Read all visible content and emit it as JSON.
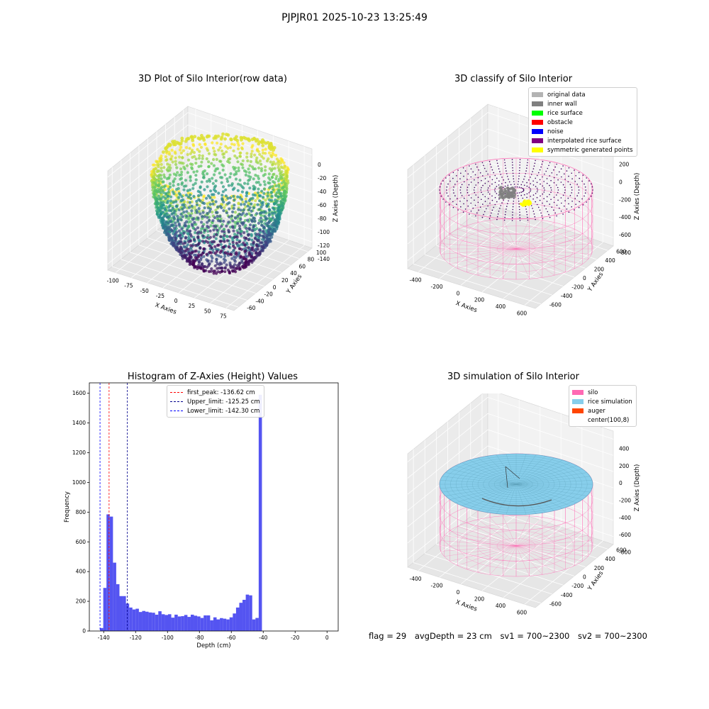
{
  "figure": {
    "suptitle": "PJPJR01 2025-10-23 13:25:49"
  },
  "footer": {
    "flag": "flag = 29",
    "avg_depth": "avgDepth = 23 cm",
    "sv1": "sv1 = 700~2300",
    "sv2": "sv2 = 700~2300"
  },
  "chart_data": [
    {
      "type": "scatter",
      "title": "3D Plot of Silo Interior(row data)",
      "xlabel": "X Axies",
      "ylabel": "Y Axies",
      "zlabel": "Z Axies (Depth)",
      "xticks": [
        "-100",
        "-75",
        "-50",
        "-25",
        "0",
        "25",
        "50",
        "75"
      ],
      "yticks": [
        "-60",
        "-40",
        "-20",
        "0",
        "20",
        "40",
        "60",
        "80",
        "100"
      ],
      "zticks": [
        "0",
        "-20",
        "-40",
        "-60",
        "-80",
        "-100",
        "-120",
        "-140"
      ],
      "xlim": [
        -100,
        90
      ],
      "ylim": [
        -60,
        110
      ],
      "zlim": [
        -150,
        5
      ],
      "colormap": "viridis",
      "grid": true
    },
    {
      "type": "scatter",
      "title": "3D classify of Silo Interior",
      "xlabel": "X Axies",
      "ylabel": "Y Axies",
      "zlabel": "Z Axies (Depth)",
      "xticks": [
        "-400",
        "-200",
        "0",
        "200",
        "400",
        "600"
      ],
      "yticks": [
        "-600",
        "-400",
        "-200",
        "0",
        "200",
        "400",
        "600"
      ],
      "zticks": [
        "200",
        "0",
        "-200",
        "-400",
        "-600",
        "-800"
      ],
      "legend": [
        {
          "label": "original data",
          "color": "#b3b3b3"
        },
        {
          "label": "inner wall",
          "color": "#808080"
        },
        {
          "label": "rice surface",
          "color": "#00ff00"
        },
        {
          "label": "obstacle",
          "color": "#ff0000"
        },
        {
          "label": "noise",
          "color": "#0000ff"
        },
        {
          "label": "interpolated rice surface",
          "color": "#800080"
        },
        {
          "label": "symmetric generated points",
          "color": "#ffff00"
        }
      ],
      "legend_position": "top-right",
      "wireframe_color": "#ff69b4"
    },
    {
      "type": "bar",
      "title": "Histogram of Z-Axies (Height) Values",
      "xlabel": "Depth (cm)",
      "ylabel": "Frequency",
      "xlim": [
        -149,
        7
      ],
      "ylim": [
        0,
        1670
      ],
      "xticks": [
        -140,
        -120,
        -100,
        -80,
        -60,
        -40,
        -20,
        0
      ],
      "yticks": [
        0,
        200,
        400,
        600,
        800,
        1000,
        1200,
        1400,
        1600
      ],
      "bin_width": 2.03,
      "bin_start": -142.3,
      "values": [
        20,
        290,
        785,
        770,
        460,
        315,
        235,
        235,
        185,
        158,
        145,
        150,
        128,
        135,
        130,
        125,
        123,
        110,
        133,
        113,
        108,
        113,
        90,
        110,
        98,
        100,
        108,
        95,
        110,
        103,
        98,
        88,
        105,
        105,
        72,
        92,
        78,
        87,
        83,
        78,
        92,
        118,
        158,
        190,
        210,
        245,
        240,
        78,
        88,
        1590
      ],
      "bar_color": "#4b4bf0",
      "lines": [
        {
          "label": "first_peak: -136.62 cm",
          "x": -136.62,
          "color": "#ff0000"
        },
        {
          "label": "Upper_limit: -125.25 cm",
          "x": -125.25,
          "color": "#00008b"
        },
        {
          "label": "Lower_limit: -142.30 cm",
          "x": -142.3,
          "color": "#0000ff"
        }
      ],
      "legend_position": "top-center"
    },
    {
      "type": "scatter",
      "title": "3D simulation of Silo Interior",
      "xlabel": "X Axies",
      "ylabel": "Y Axies",
      "zlabel": "Z Axies (Depth)",
      "xticks": [
        "-400",
        "-200",
        "0",
        "200",
        "400",
        "600"
      ],
      "yticks": [
        "-600",
        "-400",
        "-200",
        "0",
        "200",
        "400",
        "600"
      ],
      "zticks": [
        "400",
        "200",
        "0",
        "-200",
        "-400",
        "-600",
        "-800"
      ],
      "legend": [
        {
          "label": "silo",
          "color": "#ff69b4"
        },
        {
          "label": "rice simulation",
          "color": "#87ceeb"
        },
        {
          "label": "auger",
          "color": "#ff4500"
        },
        {
          "label": "center(100,8)",
          "color": ""
        }
      ],
      "legend_position": "top-right",
      "surface_color": "#87ceeb",
      "wireframe_color": "#ff69b4"
    }
  ]
}
